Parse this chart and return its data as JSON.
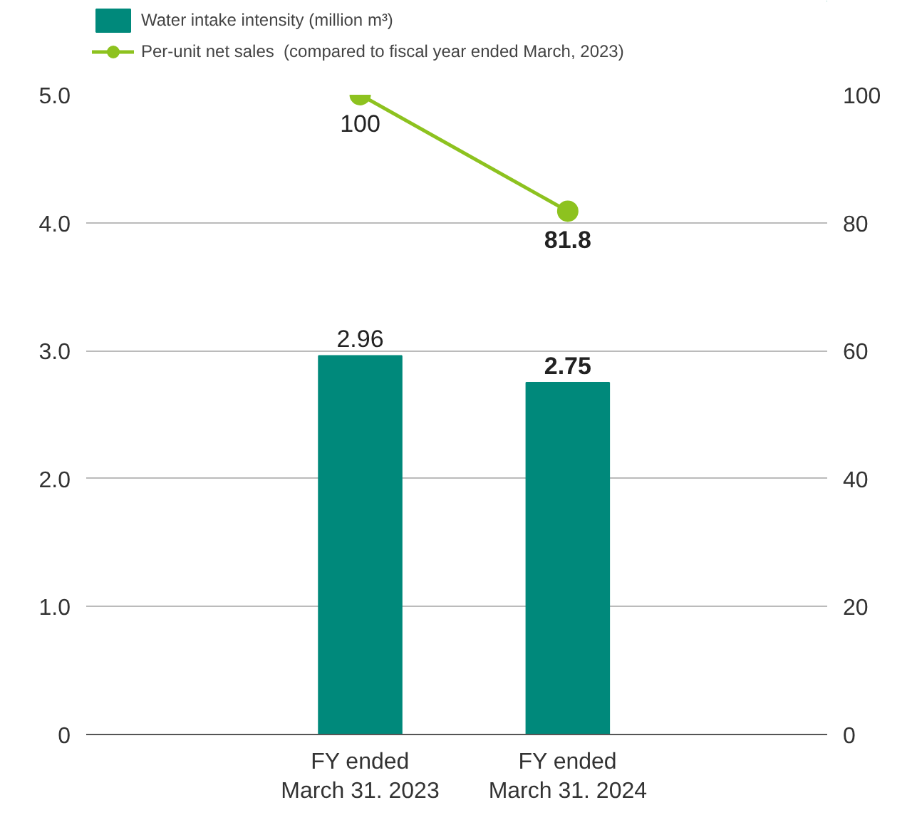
{
  "chart_data": {
    "type": "bar",
    "categories": [
      "FY ended\nMarch 31. 2023",
      "FY ended\nMarch 31. 2024"
    ],
    "series": [
      {
        "name": "Water intake intensity (million m³)",
        "color": "#00897b",
        "values": [
          2.96,
          2.75
        ]
      },
      {
        "name": "Per-unit net sales  (compared to fiscal year ended March, 2023)",
        "color": "#8dc21f",
        "values": [
          100,
          81.8
        ],
        "type": "line",
        "axis": "y2"
      }
    ],
    "ylim": [
      0,
      5
    ],
    "yticks": [
      {
        "value": 0,
        "label": "0"
      },
      {
        "value": 1,
        "label": "1.0"
      },
      {
        "value": 2,
        "label": "2.0"
      },
      {
        "value": 3,
        "label": "3.0"
      },
      {
        "value": 4,
        "label": "4.0"
      },
      {
        "value": 5,
        "label": "5.0"
      }
    ],
    "y2lim": [
      0,
      100
    ],
    "y2ticks": [
      0,
      20,
      40,
      60,
      80,
      100
    ],
    "grid": "y",
    "legend": "top left",
    "marker": "circle",
    "data_labels": true
  }
}
